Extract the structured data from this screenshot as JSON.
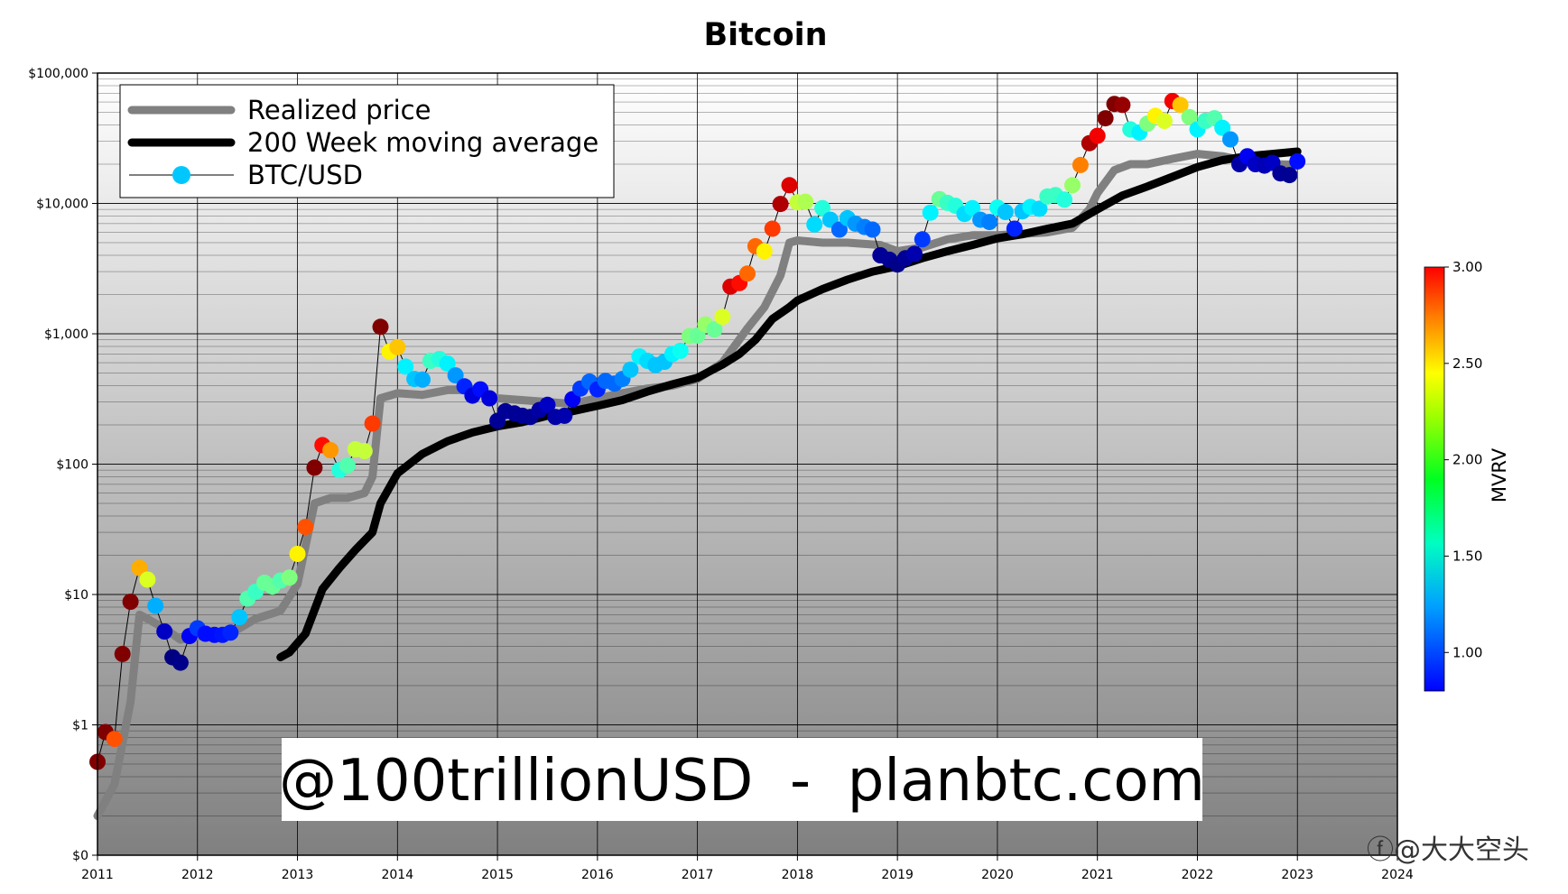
{
  "chart_data": {
    "type": "line",
    "title": "Bitcoin",
    "y_scale": "log",
    "ylim": [
      0.1,
      100000
    ],
    "xlim": [
      2011,
      2024
    ],
    "x_ticks": [
      2011,
      2012,
      2013,
      2014,
      2015,
      2016,
      2017,
      2018,
      2019,
      2020,
      2021,
      2022,
      2023,
      2024
    ],
    "x_tick_labels": [
      "2011",
      "2012",
      "2013",
      "2014",
      "2015",
      "2016",
      "2017",
      "2018",
      "2019",
      "2020",
      "2021",
      "2022",
      "2023",
      "2024"
    ],
    "y_ticks": [
      0.1,
      1,
      10,
      100,
      1000,
      10000,
      100000
    ],
    "y_tick_labels": [
      "$0",
      "$1",
      "$10",
      "$100",
      "$1,000",
      "$10,000",
      "$100,000"
    ],
    "grid": true,
    "legend_position": "top-left",
    "watermark": "@100trillionUSD  -  planbtc.com",
    "colorbar": {
      "label": "MVRV",
      "range": [
        0.8,
        3.0
      ],
      "ticks": [
        1.0,
        1.5,
        2.0,
        2.5,
        3.0
      ],
      "tick_labels": [
        "1.00",
        "1.50",
        "2.00",
        "2.50",
        "3.00"
      ],
      "colormap": "jet"
    },
    "series": [
      {
        "name": "Realized price",
        "kind": "line",
        "color": "#808080",
        "points": [
          [
            2011.0,
            0.2
          ],
          [
            2011.17,
            0.35
          ],
          [
            2011.33,
            1.5
          ],
          [
            2011.42,
            7
          ],
          [
            2011.5,
            6.5
          ],
          [
            2011.67,
            5.5
          ],
          [
            2011.83,
            4.5
          ],
          [
            2012.0,
            4.8
          ],
          [
            2012.25,
            4.9
          ],
          [
            2012.42,
            5.5
          ],
          [
            2012.58,
            6.5
          ],
          [
            2012.83,
            7.5
          ],
          [
            2013.0,
            12
          ],
          [
            2013.17,
            50
          ],
          [
            2013.33,
            55
          ],
          [
            2013.5,
            55
          ],
          [
            2013.67,
            60
          ],
          [
            2013.75,
            80
          ],
          [
            2013.83,
            320
          ],
          [
            2014.0,
            350
          ],
          [
            2014.25,
            340
          ],
          [
            2014.5,
            370
          ],
          [
            2014.75,
            370
          ],
          [
            2015.0,
            320
          ],
          [
            2015.5,
            300
          ],
          [
            2015.75,
            290
          ],
          [
            2016.0,
            320
          ],
          [
            2016.25,
            350
          ],
          [
            2016.5,
            380
          ],
          [
            2016.75,
            400
          ],
          [
            2017.0,
            450
          ],
          [
            2017.25,
            600
          ],
          [
            2017.5,
            1100
          ],
          [
            2017.67,
            1600
          ],
          [
            2017.83,
            2800
          ],
          [
            2017.92,
            5000
          ],
          [
            2018.0,
            5200
          ],
          [
            2018.25,
            5000
          ],
          [
            2018.5,
            5000
          ],
          [
            2018.83,
            4800
          ],
          [
            2019.0,
            4300
          ],
          [
            2019.25,
            4600
          ],
          [
            2019.5,
            5300
          ],
          [
            2019.75,
            5700
          ],
          [
            2020.0,
            5700
          ],
          [
            2020.5,
            6000
          ],
          [
            2020.75,
            6500
          ],
          [
            2020.92,
            9000
          ],
          [
            2021.0,
            12000
          ],
          [
            2021.17,
            18000
          ],
          [
            2021.33,
            20000
          ],
          [
            2021.5,
            20000
          ],
          [
            2021.75,
            22000
          ],
          [
            2022.0,
            24000
          ],
          [
            2022.25,
            23000
          ],
          [
            2022.5,
            21000
          ],
          [
            2022.75,
            20000
          ],
          [
            2023.0,
            19800
          ]
        ]
      },
      {
        "name": "200 Week moving average",
        "kind": "line",
        "color": "#000000",
        "points": [
          [
            2012.83,
            3.3
          ],
          [
            2012.92,
            3.6
          ],
          [
            2013.08,
            5
          ],
          [
            2013.25,
            11
          ],
          [
            2013.42,
            16
          ],
          [
            2013.58,
            22
          ],
          [
            2013.75,
            30
          ],
          [
            2013.83,
            50
          ],
          [
            2014.0,
            85
          ],
          [
            2014.25,
            120
          ],
          [
            2014.5,
            150
          ],
          [
            2014.75,
            175
          ],
          [
            2015.0,
            195
          ],
          [
            2015.25,
            210
          ],
          [
            2015.5,
            235
          ],
          [
            2015.75,
            255
          ],
          [
            2016.0,
            280
          ],
          [
            2016.25,
            310
          ],
          [
            2016.5,
            360
          ],
          [
            2016.75,
            410
          ],
          [
            2017.0,
            460
          ],
          [
            2017.25,
            580
          ],
          [
            2017.42,
            700
          ],
          [
            2017.58,
            900
          ],
          [
            2017.75,
            1300
          ],
          [
            2017.92,
            1600
          ],
          [
            2018.0,
            1800
          ],
          [
            2018.25,
            2200
          ],
          [
            2018.5,
            2600
          ],
          [
            2018.75,
            3000
          ],
          [
            2019.0,
            3300
          ],
          [
            2019.25,
            3800
          ],
          [
            2019.5,
            4300
          ],
          [
            2019.75,
            4800
          ],
          [
            2020.0,
            5400
          ],
          [
            2020.25,
            5800
          ],
          [
            2020.5,
            6400
          ],
          [
            2020.75,
            7000
          ],
          [
            2021.0,
            9000
          ],
          [
            2021.25,
            11500
          ],
          [
            2021.5,
            13500
          ],
          [
            2021.75,
            16000
          ],
          [
            2022.0,
            19000
          ],
          [
            2022.25,
            21500
          ],
          [
            2022.5,
            23000
          ],
          [
            2022.75,
            24000
          ],
          [
            2023.0,
            25000
          ]
        ]
      },
      {
        "name": "BTC/USD",
        "kind": "scatter-line",
        "color": "#00c8ff",
        "points": [
          [
            2011.0,
            0.52,
            3.0
          ],
          [
            2011.08,
            0.88,
            3.0
          ],
          [
            2011.17,
            0.78,
            2.55
          ],
          [
            2011.25,
            3.5,
            3.0
          ],
          [
            2011.33,
            8.8,
            3.0
          ],
          [
            2011.42,
            16,
            2.35
          ],
          [
            2011.5,
            13,
            2.1
          ],
          [
            2011.58,
            8.2,
            1.45
          ],
          [
            2011.67,
            5.2,
            0.95
          ],
          [
            2011.75,
            3.3,
            0.8
          ],
          [
            2011.83,
            3.0,
            0.82
          ],
          [
            2011.92,
            4.8,
            1.05
          ],
          [
            2012.0,
            5.5,
            1.2
          ],
          [
            2012.08,
            5.0,
            1.1
          ],
          [
            2012.17,
            4.9,
            1.1
          ],
          [
            2012.25,
            4.9,
            1.12
          ],
          [
            2012.33,
            5.1,
            1.15
          ],
          [
            2012.42,
            6.7,
            1.5
          ],
          [
            2012.5,
            9.3,
            1.8
          ],
          [
            2012.58,
            10.5,
            1.75
          ],
          [
            2012.67,
            12.3,
            1.85
          ],
          [
            2012.75,
            11.5,
            1.85
          ],
          [
            2012.83,
            12.8,
            1.8
          ],
          [
            2012.92,
            13.5,
            1.9
          ],
          [
            2013.0,
            20.5,
            2.2
          ],
          [
            2013.08,
            33,
            2.55
          ],
          [
            2013.17,
            94,
            3.0
          ],
          [
            2013.25,
            140,
            2.7
          ],
          [
            2013.33,
            128,
            2.4
          ],
          [
            2013.42,
            90,
            1.7
          ],
          [
            2013.5,
            98,
            1.8
          ],
          [
            2013.58,
            130,
            2.05
          ],
          [
            2013.67,
            126,
            2.05
          ],
          [
            2013.75,
            205,
            2.6
          ],
          [
            2013.83,
            1130,
            3.0
          ],
          [
            2013.92,
            730,
            2.2
          ],
          [
            2014.0,
            790,
            2.3
          ],
          [
            2014.08,
            560,
            1.6
          ],
          [
            2014.17,
            450,
            1.5
          ],
          [
            2014.25,
            445,
            1.45
          ],
          [
            2014.33,
            620,
            1.75
          ],
          [
            2014.42,
            640,
            1.7
          ],
          [
            2014.5,
            590,
            1.6
          ],
          [
            2014.58,
            480,
            1.4
          ],
          [
            2014.67,
            395,
            1.15
          ],
          [
            2014.75,
            335,
            1.0
          ],
          [
            2014.83,
            375,
            1.1
          ],
          [
            2014.92,
            320,
            1.0
          ],
          [
            2015.0,
            215,
            0.85
          ],
          [
            2015.08,
            255,
            0.85
          ],
          [
            2015.17,
            245,
            0.85
          ],
          [
            2015.25,
            235,
            0.85
          ],
          [
            2015.33,
            230,
            0.85
          ],
          [
            2015.42,
            260,
            0.88
          ],
          [
            2015.5,
            285,
            0.95
          ],
          [
            2015.58,
            230,
            0.88
          ],
          [
            2015.67,
            235,
            0.9
          ],
          [
            2015.75,
            315,
            1.05
          ],
          [
            2015.83,
            380,
            1.2
          ],
          [
            2015.92,
            430,
            1.3
          ],
          [
            2016.0,
            375,
            1.15
          ],
          [
            2016.08,
            435,
            1.3
          ],
          [
            2016.17,
            415,
            1.3
          ],
          [
            2016.25,
            450,
            1.35
          ],
          [
            2016.33,
            530,
            1.5
          ],
          [
            2016.42,
            670,
            1.6
          ],
          [
            2016.5,
            620,
            1.55
          ],
          [
            2016.58,
            575,
            1.5
          ],
          [
            2016.67,
            610,
            1.5
          ],
          [
            2016.75,
            700,
            1.6
          ],
          [
            2016.83,
            740,
            1.65
          ],
          [
            2016.92,
            960,
            1.9
          ],
          [
            2017.0,
            970,
            1.85
          ],
          [
            2017.08,
            1180,
            1.95
          ],
          [
            2017.17,
            1080,
            1.85
          ],
          [
            2017.25,
            1350,
            2.1
          ],
          [
            2017.33,
            2300,
            2.8
          ],
          [
            2017.42,
            2450,
            2.7
          ],
          [
            2017.5,
            2900,
            2.5
          ],
          [
            2017.58,
            4700,
            2.5
          ],
          [
            2017.67,
            4300,
            2.2
          ],
          [
            2017.75,
            6400,
            2.6
          ],
          [
            2017.83,
            9900,
            2.9
          ],
          [
            2017.92,
            13800,
            2.8
          ],
          [
            2018.0,
            10200,
            2.05
          ],
          [
            2018.08,
            10300,
            2.0
          ],
          [
            2018.17,
            6900,
            1.55
          ],
          [
            2018.25,
            9200,
            1.7
          ],
          [
            2018.33,
            7500,
            1.5
          ],
          [
            2018.42,
            6300,
            1.3
          ],
          [
            2018.5,
            7700,
            1.5
          ],
          [
            2018.58,
            7000,
            1.4
          ],
          [
            2018.67,
            6600,
            1.35
          ],
          [
            2018.75,
            6300,
            1.3
          ],
          [
            2018.83,
            4000,
            0.85
          ],
          [
            2018.92,
            3700,
            0.85
          ],
          [
            2019.0,
            3400,
            0.82
          ],
          [
            2019.08,
            3800,
            0.85
          ],
          [
            2019.17,
            4100,
            0.9
          ],
          [
            2019.25,
            5300,
            1.2
          ],
          [
            2019.33,
            8500,
            1.6
          ],
          [
            2019.42,
            10800,
            1.85
          ],
          [
            2019.5,
            10100,
            1.75
          ],
          [
            2019.58,
            9600,
            1.7
          ],
          [
            2019.67,
            8300,
            1.55
          ],
          [
            2019.75,
            9200,
            1.6
          ],
          [
            2019.83,
            7500,
            1.4
          ],
          [
            2019.92,
            7200,
            1.35
          ],
          [
            2020.0,
            9300,
            1.65
          ],
          [
            2020.08,
            8600,
            1.5
          ],
          [
            2020.17,
            6400,
            1.15
          ],
          [
            2020.25,
            8700,
            1.5
          ],
          [
            2020.33,
            9400,
            1.6
          ],
          [
            2020.42,
            9100,
            1.55
          ],
          [
            2020.5,
            11300,
            1.75
          ],
          [
            2020.58,
            11600,
            1.75
          ],
          [
            2020.67,
            10700,
            1.7
          ],
          [
            2020.75,
            13800,
            1.95
          ],
          [
            2020.83,
            19700,
            2.45
          ],
          [
            2020.92,
            29000,
            2.9
          ],
          [
            2021.0,
            33000,
            2.75
          ],
          [
            2021.08,
            45000,
            3.0
          ],
          [
            2021.17,
            58000,
            3.0
          ],
          [
            2021.25,
            57000,
            2.95
          ],
          [
            2021.33,
            37000,
            1.7
          ],
          [
            2021.42,
            35000,
            1.6
          ],
          [
            2021.5,
            41000,
            1.9
          ],
          [
            2021.58,
            47000,
            2.2
          ],
          [
            2021.67,
            43000,
            2.1
          ],
          [
            2021.75,
            61000,
            2.75
          ],
          [
            2021.83,
            57000,
            2.3
          ],
          [
            2021.92,
            46000,
            1.9
          ],
          [
            2022.0,
            37000,
            1.6
          ],
          [
            2022.08,
            43000,
            1.75
          ],
          [
            2022.17,
            45000,
            1.8
          ],
          [
            2022.25,
            38000,
            1.6
          ],
          [
            2022.33,
            31000,
            1.4
          ],
          [
            2022.42,
            20000,
            0.88
          ],
          [
            2022.5,
            23000,
            1.05
          ],
          [
            2022.58,
            20000,
            0.95
          ],
          [
            2022.67,
            19500,
            0.92
          ],
          [
            2022.75,
            20500,
            0.95
          ],
          [
            2022.83,
            17000,
            0.85
          ],
          [
            2022.92,
            16500,
            0.84
          ],
          [
            2023.0,
            21000,
            1.1
          ]
        ]
      }
    ]
  }
}
